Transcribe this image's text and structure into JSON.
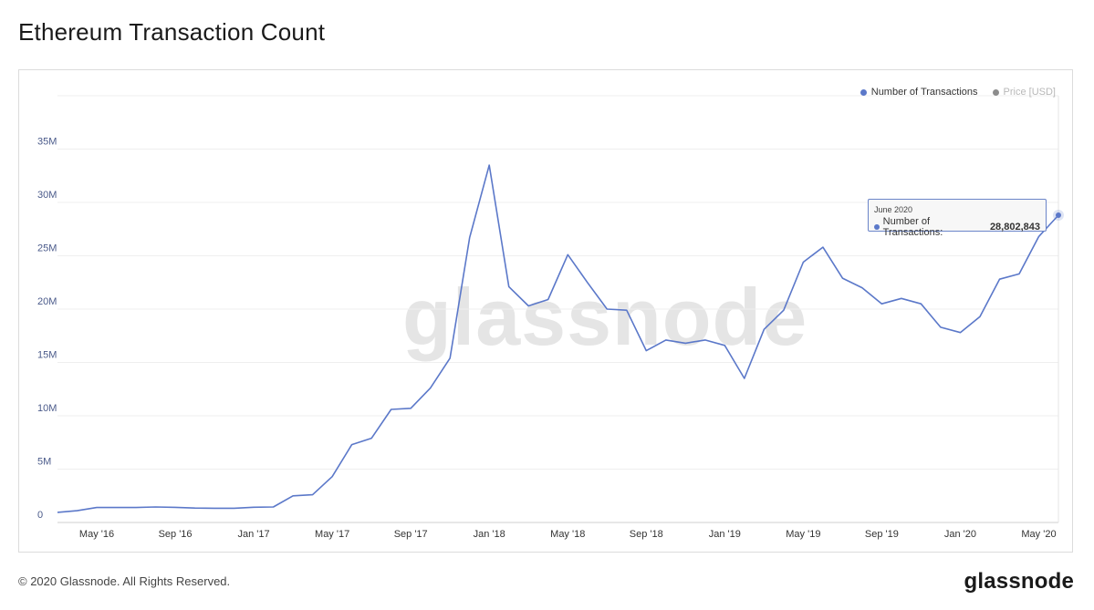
{
  "page": {
    "title": "Ethereum Transaction Count",
    "footer": "© 2020 Glassnode. All Rights Reserved.",
    "brand": "glassnode",
    "watermark": "glassnode"
  },
  "legend": {
    "items": [
      {
        "label": "Number of Transactions",
        "color": "#5b78c9",
        "active": true
      },
      {
        "label": "Price [USD]",
        "color": "#8c8c8c",
        "active": false
      }
    ]
  },
  "tooltip": {
    "date": "June 2020",
    "label": "Number of Transactions:",
    "value": "28,802,843"
  },
  "chart_data": {
    "type": "line",
    "title": "Ethereum Transaction Count",
    "xlabel": "",
    "ylabel": "",
    "ylim": [
      0,
      40000000
    ],
    "xlim": [
      0,
      52
    ],
    "grid": true,
    "legend_position": "top-right",
    "y_ticks": [
      {
        "value": 0,
        "label": "0"
      },
      {
        "value": 5000000,
        "label": "5M"
      },
      {
        "value": 10000000,
        "label": "10M"
      },
      {
        "value": 15000000,
        "label": "15M"
      },
      {
        "value": 20000000,
        "label": "20M"
      },
      {
        "value": 25000000,
        "label": "25M"
      },
      {
        "value": 30000000,
        "label": "30M"
      },
      {
        "value": 35000000,
        "label": "35M"
      }
    ],
    "x_ticks": [
      {
        "index": 2,
        "label": "May '16"
      },
      {
        "index": 6,
        "label": "Sep '16"
      },
      {
        "index": 10,
        "label": "Jan '17"
      },
      {
        "index": 14,
        "label": "May '17"
      },
      {
        "index": 18,
        "label": "Sep '17"
      },
      {
        "index": 22,
        "label": "Jan '18"
      },
      {
        "index": 26,
        "label": "May '18"
      },
      {
        "index": 30,
        "label": "Sep '18"
      },
      {
        "index": 34,
        "label": "Jan '19"
      },
      {
        "index": 38,
        "label": "May '19"
      },
      {
        "index": 42,
        "label": "Sep '19"
      },
      {
        "index": 46,
        "label": "Jan '20"
      },
      {
        "index": 50,
        "label": "May '20"
      }
    ],
    "series": [
      {
        "name": "Number of Transactions",
        "color": "#5b78c9",
        "x": [
          "Mar 2016",
          "Apr 2016",
          "May 2016",
          "Jun 2016",
          "Jul 2016",
          "Aug 2016",
          "Sep 2016",
          "Oct 2016",
          "Nov 2016",
          "Dec 2016",
          "Jan 2017",
          "Feb 2017",
          "Mar 2017",
          "Apr 2017",
          "May 2017",
          "Jun 2017",
          "Jul 2017",
          "Aug 2017",
          "Sep 2017",
          "Oct 2017",
          "Nov 2017",
          "Dec 2017",
          "Jan 2018",
          "Feb 2018",
          "Mar 2018",
          "Apr 2018",
          "May 2018",
          "Jun 2018",
          "Jul 2018",
          "Aug 2018",
          "Sep 2018",
          "Oct 2018",
          "Nov 2018",
          "Dec 2018",
          "Jan 2019",
          "Feb 2019",
          "Mar 2019",
          "Apr 2019",
          "May 2019",
          "Jun 2019",
          "Jul 2019",
          "Aug 2019",
          "Sep 2019",
          "Oct 2019",
          "Nov 2019",
          "Dec 2019",
          "Jan 2020",
          "Feb 2020",
          "Mar 2020",
          "Apr 2020",
          "May 2020",
          "Jun 2020"
        ],
        "values": [
          950000,
          1100000,
          1400000,
          1400000,
          1400000,
          1450000,
          1420000,
          1350000,
          1330000,
          1330000,
          1430000,
          1450000,
          2500000,
          2600000,
          4300000,
          7300000,
          7900000,
          10600000,
          10700000,
          12600000,
          15400000,
          26700000,
          33500000,
          22100000,
          20300000,
          20900000,
          25100000,
          22500000,
          20000000,
          19900000,
          16100000,
          17100000,
          16800000,
          17100000,
          16600000,
          13500000,
          18100000,
          19900000,
          24400000,
          25800000,
          22900000,
          22000000,
          20500000,
          21000000,
          20500000,
          18300000,
          17800000,
          19300000,
          22800000,
          23300000,
          26800000,
          28802843
        ]
      }
    ]
  }
}
